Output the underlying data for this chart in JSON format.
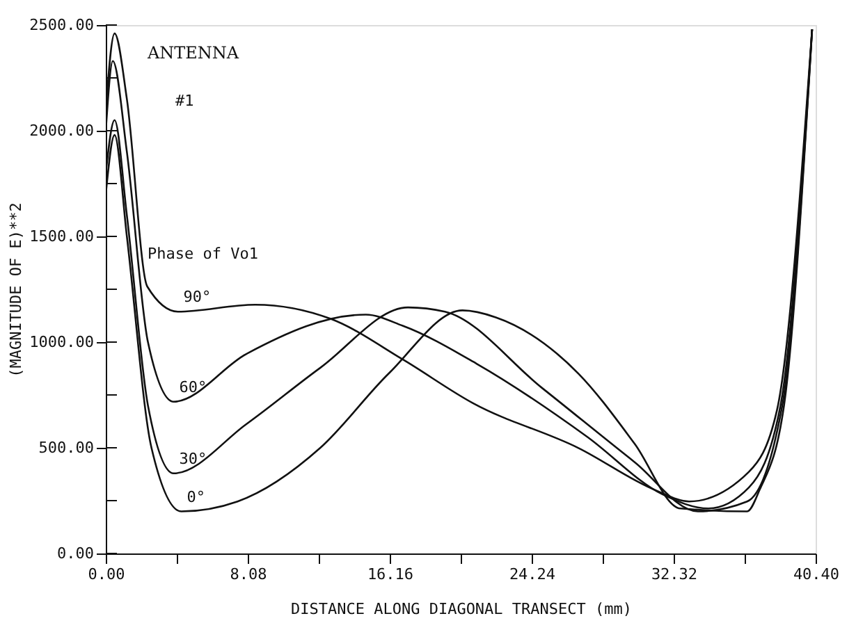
{
  "chart_data": {
    "type": "line",
    "xlabel": "DISTANCE ALONG DIAGONAL TRANSECT (mm)",
    "ylabel": "(MAGNITUDE OF E)**2",
    "xlim": [
      0,
      40.4
    ],
    "ylim": [
      0,
      2500
    ],
    "xticks": [
      {
        "value": 0,
        "label": "0.00"
      },
      {
        "value": 4.04,
        "label": null
      },
      {
        "value": 8.08,
        "label": "8.08"
      },
      {
        "value": 12.12,
        "label": null
      },
      {
        "value": 16.16,
        "label": "16.16"
      },
      {
        "value": 20.2,
        "label": null
      },
      {
        "value": 24.24,
        "label": "24.24"
      },
      {
        "value": 28.28,
        "label": null
      },
      {
        "value": 32.32,
        "label": "32.32"
      },
      {
        "value": 36.36,
        "label": null
      },
      {
        "value": 40.4,
        "label": "40.40"
      }
    ],
    "yticks": [
      {
        "value": 0,
        "label": "0.00"
      },
      {
        "value": 250,
        "label": null
      },
      {
        "value": 500,
        "label": "500.00"
      },
      {
        "value": 750,
        "label": null
      },
      {
        "value": 1000,
        "label": "1000.00"
      },
      {
        "value": 1250,
        "label": null
      },
      {
        "value": 1500,
        "label": "1500.00"
      },
      {
        "value": 1750,
        "label": null
      },
      {
        "value": 2000,
        "label": "2000.00"
      },
      {
        "value": 2250,
        "label": null
      },
      {
        "value": 2500,
        "label": "2500.00"
      }
    ],
    "grid": false,
    "legend": false,
    "line_style": "solid",
    "marker": "none",
    "series": [
      {
        "name": "90°",
        "color": "#111111",
        "x": [
          0,
          0.5,
          1.2,
          2.36,
          4.1,
          8.5,
          12.8,
          16.9,
          20.9,
          26.9,
          31.3,
          33.2,
          36.6,
          38.2,
          40.2
        ],
        "values": [
          2100,
          2460,
          2150,
          1263,
          1144,
          1177,
          1110,
          918,
          711,
          499,
          299,
          246,
          386,
          678,
          2480
        ]
      },
      {
        "name": "60°",
        "color": "#111111",
        "x": [
          0,
          0.4,
          1.2,
          2.4,
          3.86,
          8.0,
          14.8,
          16.9,
          21.1,
          27.4,
          31.7,
          34.3,
          36.6,
          38.4,
          40.2
        ],
        "values": [
          2000,
          2330,
          1900,
          1000,
          718,
          944,
          1130,
          1077,
          898,
          552,
          279,
          213,
          312,
          700,
          2480
        ]
      },
      {
        "name": "30°",
        "color": "#111111",
        "x": [
          0,
          0.5,
          1.2,
          2.4,
          3.86,
          8.0,
          12.2,
          17.2,
          19.3,
          24.8,
          30.1,
          33.7,
          36.5,
          38.5,
          40.2
        ],
        "values": [
          1800,
          2050,
          1600,
          700,
          379,
          612,
          878,
          1164,
          1144,
          785,
          432,
          199,
          246,
          700,
          2480
        ]
      },
      {
        "name": "0°",
        "color": "#111111",
        "x": [
          0,
          0.5,
          1.2,
          2.6,
          4.3,
          7.5,
          12.2,
          16.1,
          20.3,
          22.2,
          26.9,
          30.1,
          32.7,
          36.5,
          37.2,
          38.6,
          40.2
        ],
        "values": [
          1700,
          1980,
          1500,
          500,
          199,
          246,
          499,
          851,
          1150,
          1117,
          851,
          519,
          213,
          199,
          299,
          700,
          2480
        ]
      }
    ],
    "annotations": [
      "ANTENNA",
      "#1",
      "Phase of Vo1"
    ]
  }
}
